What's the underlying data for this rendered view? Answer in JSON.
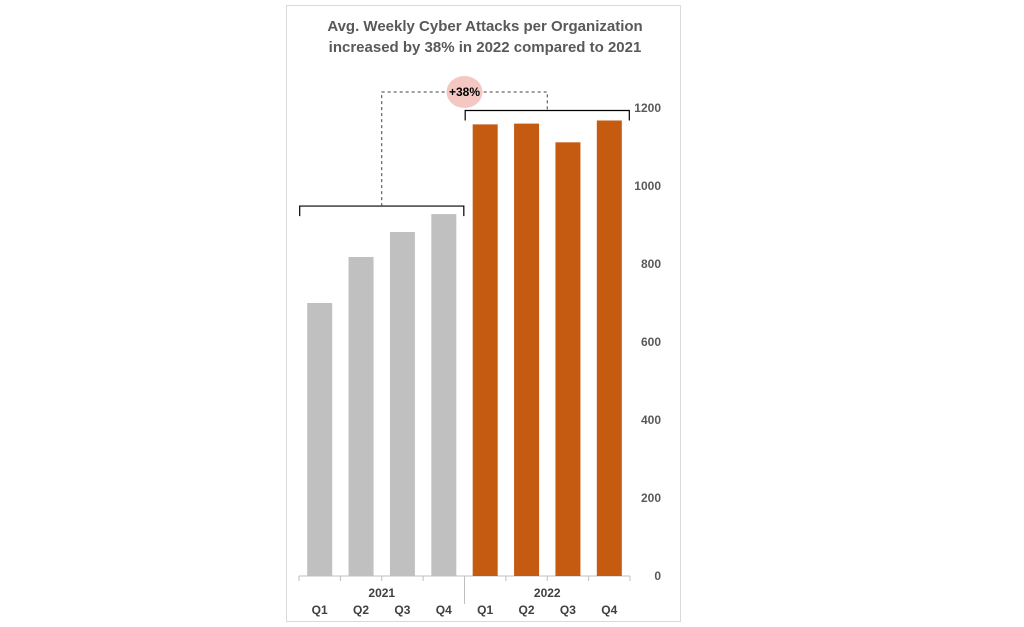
{
  "chart_data": {
    "type": "bar",
    "title": [
      "Avg. Weekly Cyber Attacks per Organization",
      "increased by 38% in 2022 compared to 2021"
    ],
    "categories": [
      "Q1",
      "Q2",
      "Q3",
      "Q4",
      "Q1",
      "Q2",
      "Q3",
      "Q4"
    ],
    "groups": [
      {
        "label": "2021",
        "color": "#c0c0c0",
        "values": [
          700,
          818,
          882,
          928
        ]
      },
      {
        "label": "2022",
        "color": "#c55a11",
        "values": [
          1158,
          1160,
          1112,
          1168
        ]
      }
    ],
    "ylim": [
      0,
      1200
    ],
    "yticks": [
      0,
      200,
      400,
      600,
      800,
      1000,
      1200
    ],
    "y_axis_side": "right",
    "grid": false,
    "annotation": {
      "text": "+38%",
      "color": "#f4c7c3"
    }
  }
}
